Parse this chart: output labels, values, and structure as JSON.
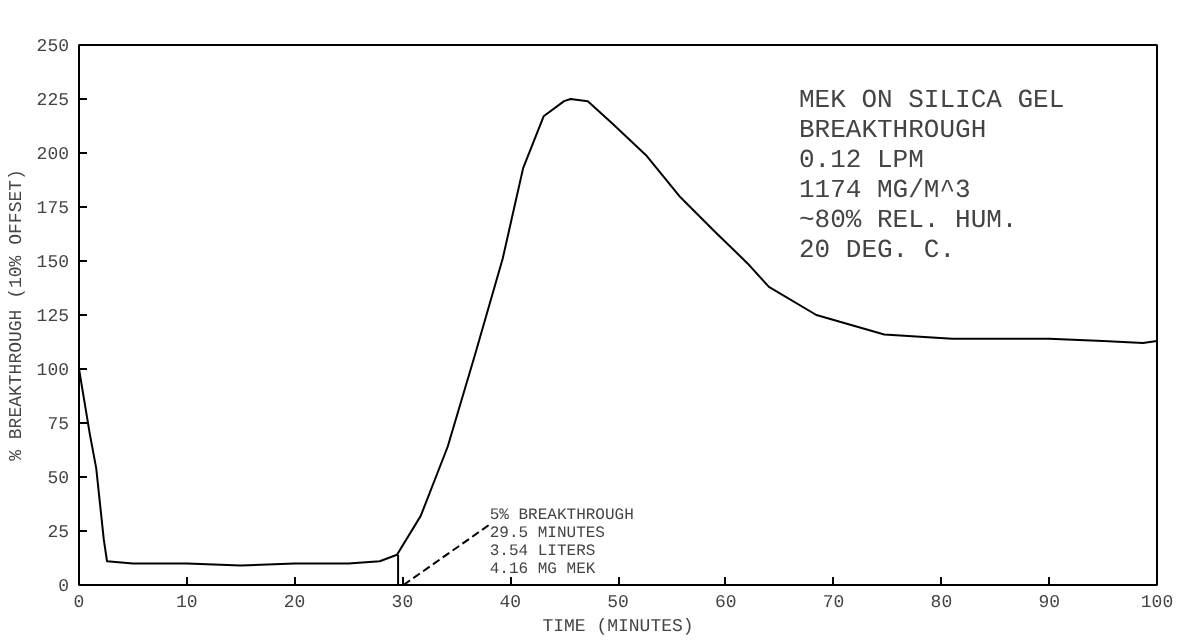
{
  "chart_data": {
    "type": "line",
    "title": "MEK ON SILICA GEL\n BREAKTHROUGH\n0.12 LPM\n  1174 MG/M^3\n   ~80% REL. HUM.\n    20 DEG. C.",
    "xlabel": "TIME (MINUTES)",
    "ylabel": "% BREAKTHROUGH (10% OFFSET)",
    "series": [
      {
        "color": "#000000",
        "x": [
          0,
          0.5,
          1.0,
          1.6,
          2.3,
          2.6,
          5,
          10,
          15,
          20,
          25,
          27.9,
          29.5,
          31.7,
          34.2,
          36.7,
          39.3,
          41.2,
          43.1,
          45.0,
          45.6,
          47.2,
          49.4,
          52.6,
          55.7,
          58.9,
          62.0,
          64.0,
          68.4,
          74.7,
          81.0,
          90,
          95,
          98.7,
          100
        ],
        "values": [
          100,
          85,
          70,
          54,
          21,
          11,
          10,
          10,
          9,
          10,
          10,
          11,
          14,
          32,
          64,
          106,
          151,
          193,
          217,
          224,
          225,
          224,
          214,
          199,
          180,
          164,
          149,
          138,
          125,
          116,
          114,
          114,
          113,
          112,
          113
        ]
      },
      {
        "color": "#000000",
        "x": [
          29.6,
          29.6
        ],
        "values": [
          14,
          0
        ]
      }
    ],
    "annotations": [
      {
        "text": "5% BREAKTHROUGH\n29.5 MINUTES\n3.54 LITERS\n4.16 MG MEK",
        "x": 29.6,
        "y": 0
      }
    ],
    "xlim": [
      0,
      100
    ],
    "ylim": [
      0,
      250
    ],
    "xticks": [
      0,
      10,
      20,
      30,
      40,
      50,
      60,
      70,
      80,
      90,
      100
    ],
    "yticks": [
      0,
      25,
      50,
      75,
      100,
      125,
      150,
      175,
      200,
      225,
      250
    ],
    "grid": false,
    "marker": "none",
    "line_style": "solid"
  }
}
